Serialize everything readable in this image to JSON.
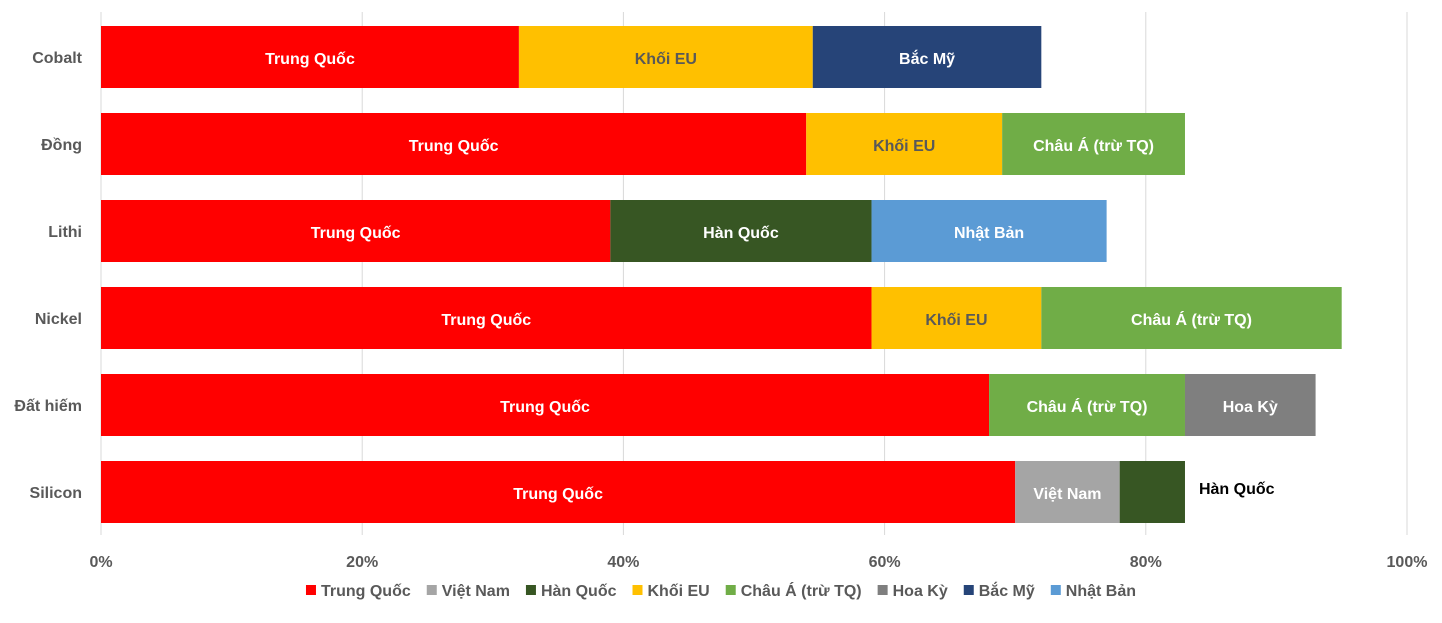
{
  "chart_data": {
    "type": "bar",
    "orientation": "horizontal",
    "stacked": true,
    "categories": [
      "Cobalt",
      "Đồng",
      "Lithi",
      "Nickel",
      "Đất hiếm",
      "Silicon"
    ],
    "xlim": [
      0,
      100
    ],
    "x_ticks": [
      "0%",
      "20%",
      "40%",
      "60%",
      "80%",
      "100%"
    ],
    "grid": "vertical",
    "legend_position": "bottom",
    "series": [
      {
        "name": "Trung Quốc",
        "color": "#ff0000",
        "label_color": "#ffffff",
        "values": [
          32,
          54,
          39,
          59,
          68,
          70
        ]
      },
      {
        "name": "Việt Nam",
        "color": "#a5a5a5",
        "label_color": "#ffffff",
        "values": [
          0,
          0,
          0,
          0,
          0,
          8
        ]
      },
      {
        "name": "Hàn Quốc",
        "color": "#375623",
        "label_color": "#ffffff",
        "values": [
          0,
          0,
          20,
          0,
          0,
          5
        ]
      },
      {
        "name": "Khối EU",
        "color": "#ffc000",
        "label_color": "#595959",
        "values": [
          22.5,
          15,
          0,
          13,
          0,
          0
        ]
      },
      {
        "name": "Châu Á (trừ TQ)",
        "color": "#70ad47",
        "label_color": "#ffffff",
        "values": [
          0,
          14,
          0,
          23,
          15,
          0
        ]
      },
      {
        "name": "Hoa Kỳ",
        "color": "#7f7f7f",
        "label_color": "#ffffff",
        "values": [
          0,
          0,
          0,
          0,
          10,
          0
        ]
      },
      {
        "name": "Bắc Mỹ",
        "color": "#264478",
        "label_color": "#ffffff",
        "values": [
          17.5,
          0,
          0,
          0,
          0,
          0
        ]
      },
      {
        "name": "Nhật Bản",
        "color": "#5b9bd5",
        "label_color": "#ffffff",
        "values": [
          0,
          0,
          18,
          0,
          0,
          0
        ]
      }
    ],
    "outside_labels": [
      {
        "category": "Silicon",
        "series": "Hàn Quốc",
        "text": "Hàn Quốc"
      }
    ]
  }
}
